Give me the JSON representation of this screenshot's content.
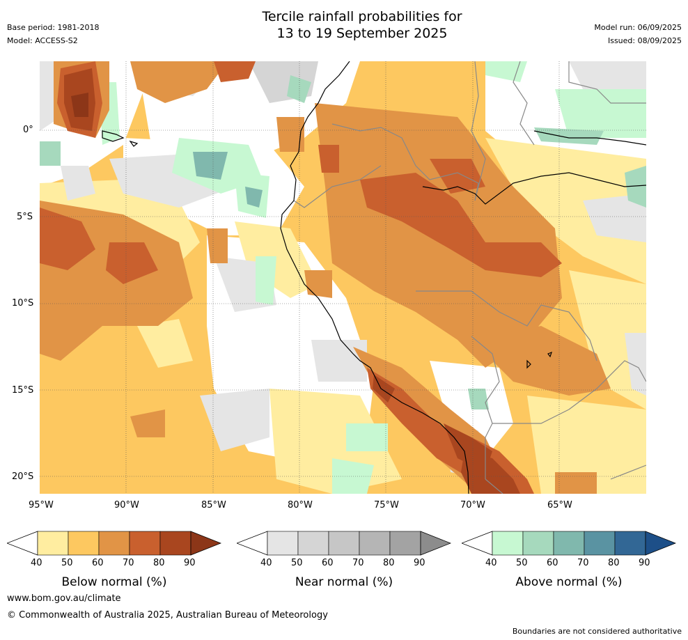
{
  "header": {
    "title_line1": "Tercile rainfall probabilities for",
    "title_line2": "13 to 19 September 2025",
    "base_period": "Base period: 1981-2018",
    "model": "Model: ACCESS-S2",
    "model_run": "Model run: 06/09/2025",
    "issued": "Issued: 08/09/2025"
  },
  "map": {
    "lon_labels": [
      "95°W",
      "90°W",
      "85°W",
      "80°W",
      "75°W",
      "70°W",
      "65°W"
    ],
    "lat_labels": [
      "0°",
      "5°S",
      "10°S",
      "15°S",
      "20°S"
    ],
    "lon_range": [
      -95,
      -60
    ],
    "lat_range": [
      -21,
      4
    ]
  },
  "colorbars": [
    {
      "title": "Below normal (%)",
      "ticks": [
        "40",
        "50",
        "60",
        "70",
        "80",
        "90"
      ],
      "colors": [
        "#ffeda0",
        "#fdc860",
        "#e19446",
        "#c9602e",
        "#a9461f",
        "#8c3618"
      ]
    },
    {
      "title": "Near normal (%)",
      "ticks": [
        "40",
        "50",
        "60",
        "70",
        "80",
        "90"
      ],
      "colors": [
        "#e5e5e5",
        "#d5d5d5",
        "#c6c6c6",
        "#b5b5b5",
        "#a3a3a3",
        "#8c8c8c"
      ]
    },
    {
      "title": "Above normal (%)",
      "ticks": [
        "40",
        "50",
        "60",
        "70",
        "80",
        "90"
      ],
      "colors": [
        "#c7f8d2",
        "#a6d9bd",
        "#80b8ad",
        "#5a93a2",
        "#326795",
        "#1d4f88"
      ]
    }
  ],
  "footer": {
    "website": "www.bom.gov.au/climate",
    "copyright": "© Commonwealth of Australia 2025, Australian Bureau of Meteorology",
    "disclaimer": "Boundaries are not considered authoritative"
  }
}
